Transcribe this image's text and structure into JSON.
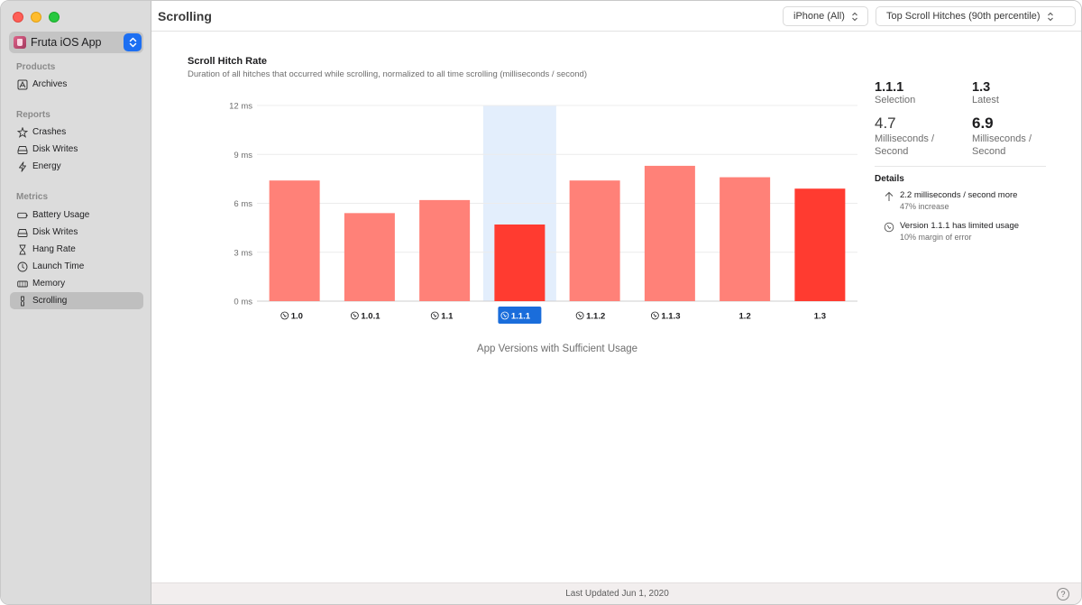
{
  "app_picker": {
    "name": "Fruta iOS App"
  },
  "sidebar": {
    "sections": [
      {
        "label": "Products",
        "items": [
          {
            "label": "Archives",
            "icon": "archive-icon"
          }
        ]
      },
      {
        "label": "Reports",
        "items": [
          {
            "label": "Crashes",
            "icon": "crash-icon"
          },
          {
            "label": "Disk Writes",
            "icon": "disk-icon"
          },
          {
            "label": "Energy",
            "icon": "bolt-icon"
          }
        ]
      },
      {
        "label": "Metrics",
        "items": [
          {
            "label": "Battery Usage",
            "icon": "battery-icon"
          },
          {
            "label": "Disk Writes",
            "icon": "disk-icon"
          },
          {
            "label": "Hang Rate",
            "icon": "hourglass-icon"
          },
          {
            "label": "Launch Time",
            "icon": "clock-icon"
          },
          {
            "label": "Memory",
            "icon": "memory-icon"
          },
          {
            "label": "Scrolling",
            "icon": "scroll-icon",
            "selected": true
          }
        ]
      }
    ]
  },
  "header": {
    "title": "Scrolling",
    "device_filter": "iPhone (All)",
    "metric_filter": "Top Scroll Hitches (90th percentile)"
  },
  "chart_data": {
    "type": "bar",
    "title": "Scroll Hitch Rate",
    "subtitle": "Duration of all hitches that occurred while scrolling, normalized to all time scrolling (milliseconds / second)",
    "xlabel": "App Versions with Sufficient Usage",
    "ylabel": "",
    "ylim": [
      0,
      12
    ],
    "yticks": [
      "0 ms",
      "3 ms",
      "6 ms",
      "9 ms",
      "12 ms"
    ],
    "categories": [
      "1.0",
      "1.0.1",
      "1.1",
      "1.1.1",
      "1.1.2",
      "1.1.3",
      "1.2",
      "1.3"
    ],
    "values": [
      7.4,
      5.4,
      6.2,
      4.7,
      7.4,
      8.3,
      7.6,
      6.9
    ],
    "selected_category": "1.1.1",
    "limited_usage_categories": [
      "1.0",
      "1.0.1",
      "1.1",
      "1.1.1",
      "1.1.2",
      "1.1.3"
    ],
    "grid": true,
    "colors": {
      "bar": "#ff8178",
      "highlight": "#ff3b30",
      "selection_band": "#e3eefc",
      "selected_tag": "#1a6ddb"
    }
  },
  "stats": {
    "selection": {
      "version": "1.1.1",
      "caption": "Selection",
      "value": "4.7",
      "unit": "Milliseconds / Second"
    },
    "latest": {
      "version": "1.3",
      "caption": "Latest",
      "value": "6.9",
      "unit": "Milliseconds / Second"
    }
  },
  "details": {
    "title": "Details",
    "items": [
      {
        "icon": "arrow-up-icon",
        "text": "2.2 milliseconds / second more",
        "sub": "47% increase"
      },
      {
        "icon": "limited-usage-icon",
        "text": "Version 1.1.1 has limited usage",
        "sub": "10% margin of error"
      }
    ]
  },
  "footer": {
    "text": "Last Updated Jun 1, 2020",
    "help": "?"
  }
}
